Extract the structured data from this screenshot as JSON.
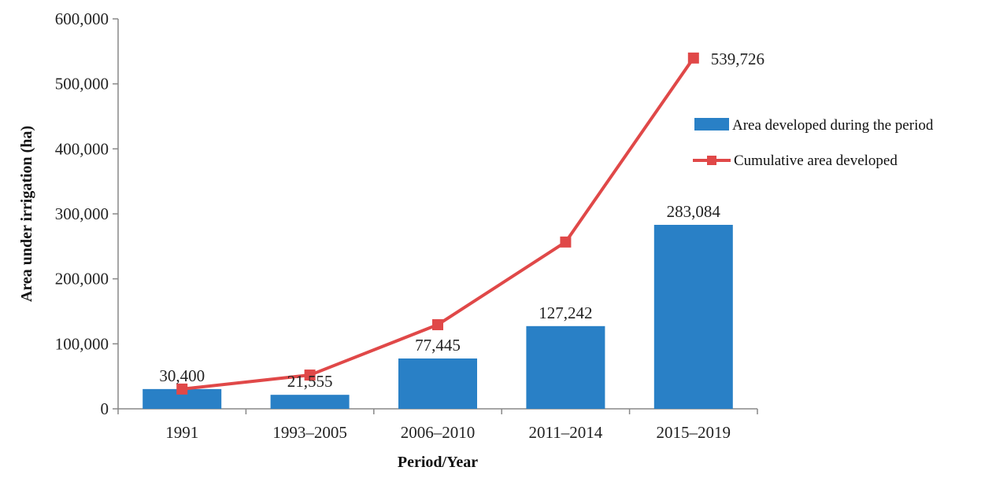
{
  "chart_data": {
    "type": "bar",
    "title": "",
    "xlabel": "Period/Year",
    "ylabel": "Area under irrigation (ha)",
    "ylim": [
      0,
      600000
    ],
    "yticks": [
      0,
      100000,
      200000,
      300000,
      400000,
      500000,
      600000
    ],
    "ytick_labels": [
      "0",
      "100,000",
      "200,000",
      "300,000",
      "400,000",
      "500,000",
      "600,000"
    ],
    "categories": [
      "1991",
      "1993–2005",
      "2006–2010",
      "2011–2014",
      "2015–2019"
    ],
    "series": [
      {
        "name": "Area developed during the period",
        "kind": "bar",
        "color": "#2980C6",
        "values": [
          30400,
          21555,
          77445,
          127242,
          283084
        ],
        "labels": [
          "30,400",
          "21,555",
          "77,445",
          "127,242",
          "283,084"
        ]
      },
      {
        "name": "Cumulative area developed",
        "kind": "line",
        "marker": "square",
        "color": "#E04848",
        "values": [
          30400,
          51955,
          129400,
          256642,
          539726
        ],
        "labels": [
          "",
          "",
          "",
          "",
          "539,726"
        ]
      }
    ],
    "legend_position": "right"
  }
}
